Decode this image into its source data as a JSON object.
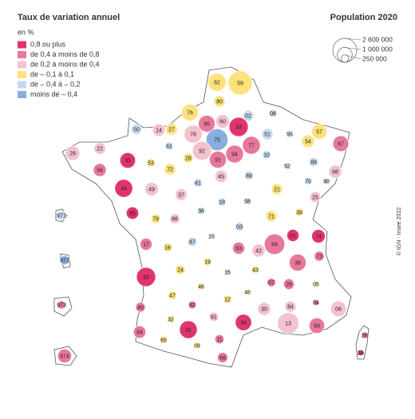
{
  "title": "Taux de variation annuel",
  "subtitle": "en %",
  "legend": [
    {
      "name": "0,8 ou plus",
      "color": "#e0356a"
    },
    {
      "name": "de 0,4 à moins de 0,8",
      "color": "#e8789a"
    },
    {
      "name": "de 0,2 à moins de 0,4",
      "color": "#f4c2cf"
    },
    {
      "name": "de – 0,1 à 0,1",
      "color": "#fbe27a"
    },
    {
      "name": "de – 0,4 à  – 0,2",
      "color": "#c5daf0"
    },
    {
      "name": "moins de – 0,4",
      "color": "#8aaee0"
    }
  ],
  "size_legend": {
    "title": "Population 2020",
    "values": [
      {
        "value": 2600000,
        "label": "2 600 000"
      },
      {
        "value": 1000000,
        "label": "1 000 000"
      },
      {
        "value": 250000,
        "label": "250 000"
      }
    ]
  },
  "source": "© IGN - Insee 2022",
  "departements": [
    {
      "code": "62",
      "class": 3,
      "population": 1460000
    },
    {
      "code": "59",
      "class": 3,
      "population": 2600000
    },
    {
      "code": "80",
      "class": 3,
      "population": 570000
    },
    {
      "code": "76",
      "class": 3,
      "population": 1250000
    },
    {
      "code": "02",
      "class": 4,
      "population": 530000
    },
    {
      "code": "08",
      "class": 4,
      "population": 270000
    },
    {
      "code": "60",
      "class": 2,
      "population": 830000
    },
    {
      "code": "95",
      "class": 1,
      "population": 1250000
    },
    {
      "code": "93",
      "class": 0,
      "population": 1650000
    },
    {
      "code": "77",
      "class": 1,
      "population": 1420000
    },
    {
      "code": "51",
      "class": 4,
      "population": 565000
    },
    {
      "code": "55",
      "class": 4,
      "population": 183000
    },
    {
      "code": "57",
      "class": 3,
      "population": 1045000
    },
    {
      "code": "67",
      "class": 1,
      "population": 1140000
    },
    {
      "code": "54",
      "class": 3,
      "population": 730000
    },
    {
      "code": "50",
      "class": 4,
      "population": 495000
    },
    {
      "code": "14",
      "class": 2,
      "population": 695000
    },
    {
      "code": "27",
      "class": 3,
      "population": 600000
    },
    {
      "code": "78",
      "class": 2,
      "population": 1450000
    },
    {
      "code": "75",
      "class": 5,
      "population": 2150000
    },
    {
      "code": "92",
      "class": 2,
      "population": 1620000
    },
    {
      "code": "94",
      "class": 1,
      "population": 1400000
    },
    {
      "code": "91",
      "class": 1,
      "population": 1300000
    },
    {
      "code": "61",
      "class": 4,
      "population": 280000
    },
    {
      "code": "29",
      "class": 2,
      "population": 915000
    },
    {
      "code": "22",
      "class": 2,
      "population": 600000
    },
    {
      "code": "35",
      "class": 0,
      "population": 1090000
    },
    {
      "code": "56",
      "class": 1,
      "population": 760000
    },
    {
      "code": "53",
      "class": 3,
      "population": 307000
    },
    {
      "code": "72",
      "class": 3,
      "population": 566000
    },
    {
      "code": "28",
      "class": 3,
      "population": 432000
    },
    {
      "code": "45",
      "class": 2,
      "population": 680000
    },
    {
      "code": "89",
      "class": 4,
      "population": 335000
    },
    {
      "code": "10",
      "class": 4,
      "population": 310000
    },
    {
      "code": "52",
      "class": 4,
      "population": 172000
    },
    {
      "code": "88",
      "class": 4,
      "population": 365000
    },
    {
      "code": "68",
      "class": 2,
      "population": 765000
    },
    {
      "code": "70",
      "class": 4,
      "population": 235000
    },
    {
      "code": "90",
      "class": 4,
      "population": 140000
    },
    {
      "code": "44",
      "class": 0,
      "population": 1440000
    },
    {
      "code": "49",
      "class": 2,
      "population": 820000
    },
    {
      "code": "37",
      "class": 2,
      "population": 610000
    },
    {
      "code": "41",
      "class": 4,
      "population": 330000
    },
    {
      "code": "18",
      "class": 4,
      "population": 300000
    },
    {
      "code": "58",
      "class": 4,
      "population": 203000
    },
    {
      "code": "21",
      "class": 3,
      "population": 535000
    },
    {
      "code": "25",
      "class": 2,
      "population": 545000
    },
    {
      "code": "85",
      "class": 0,
      "population": 690000
    },
    {
      "code": "79",
      "class": 3,
      "population": 375000
    },
    {
      "code": "86",
      "class": 2,
      "population": 440000
    },
    {
      "code": "36",
      "class": 4,
      "population": 218000
    },
    {
      "code": "71",
      "class": 3,
      "population": 550000
    },
    {
      "code": "39",
      "class": 3,
      "population": 260000
    },
    {
      "code": "03",
      "class": 4,
      "population": 335000
    },
    {
      "code": "01",
      "class": 0,
      "population": 660000
    },
    {
      "code": "74",
      "class": 0,
      "population": 830000
    },
    {
      "code": "69",
      "class": 1,
      "population": 1880000
    },
    {
      "code": "17",
      "class": 1,
      "population": 650000
    },
    {
      "code": "16",
      "class": 3,
      "population": 350000
    },
    {
      "code": "87",
      "class": 4,
      "population": 372000
    },
    {
      "code": "23",
      "class": 4,
      "population": 116000
    },
    {
      "code": "63",
      "class": 1,
      "population": 665000
    },
    {
      "code": "42",
      "class": 2,
      "population": 765000
    },
    {
      "code": "38",
      "class": 1,
      "population": 1275000
    },
    {
      "code": "73",
      "class": 1,
      "population": 437000
    },
    {
      "code": "19",
      "class": 3,
      "population": 240000
    },
    {
      "code": "24",
      "class": 3,
      "population": 413000
    },
    {
      "code": "15",
      "class": 4,
      "population": 144000
    },
    {
      "code": "43",
      "class": 3,
      "population": 228000
    },
    {
      "code": "33",
      "class": 0,
      "population": 1640000
    },
    {
      "code": "46",
      "class": 3,
      "population": 174000
    },
    {
      "code": "48",
      "class": 3,
      "population": 76000
    },
    {
      "code": "07",
      "class": 1,
      "population": 329000
    },
    {
      "code": "26",
      "class": 1,
      "population": 520000
    },
    {
      "code": "05",
      "class": 3,
      "population": 141000
    },
    {
      "code": "47",
      "class": 3,
      "population": 330000
    },
    {
      "code": "12",
      "class": 3,
      "population": 280000
    },
    {
      "code": "82",
      "class": 1,
      "population": 262000
    },
    {
      "code": "40",
      "class": 1,
      "population": 415000
    },
    {
      "code": "30",
      "class": 2,
      "population": 750000
    },
    {
      "code": "84",
      "class": 2,
      "population": 560000
    },
    {
      "code": "04",
      "class": 1,
      "population": 165000
    },
    {
      "code": "06",
      "class": 2,
      "population": 1090000
    },
    {
      "code": "32",
      "class": 3,
      "population": 191000
    },
    {
      "code": "81",
      "class": 2,
      "population": 390000
    },
    {
      "code": "13",
      "class": 2,
      "population": 2040000
    },
    {
      "code": "34",
      "class": 0,
      "population": 1190000
    },
    {
      "code": "83",
      "class": 1,
      "population": 1080000
    },
    {
      "code": "64",
      "class": 1,
      "population": 685000
    },
    {
      "code": "65",
      "class": 3,
      "population": 230000
    },
    {
      "code": "31",
      "class": 0,
      "population": 1410000
    },
    {
      "code": "11",
      "class": 1,
      "population": 375000
    },
    {
      "code": "09",
      "class": 3,
      "population": 153000
    },
    {
      "code": "66",
      "class": 1,
      "population": 480000
    },
    {
      "code": "2B",
      "class": 1,
      "population": 182000
    },
    {
      "code": "2A",
      "class": 0,
      "population": 160000
    },
    {
      "code": "971",
      "class": 4,
      "population": 385000
    },
    {
      "code": "972",
      "class": 5,
      "population": 360000
    },
    {
      "code": "973",
      "class": 1,
      "population": 290000
    },
    {
      "code": "974",
      "class": 1,
      "population": 865000
    }
  ]
}
